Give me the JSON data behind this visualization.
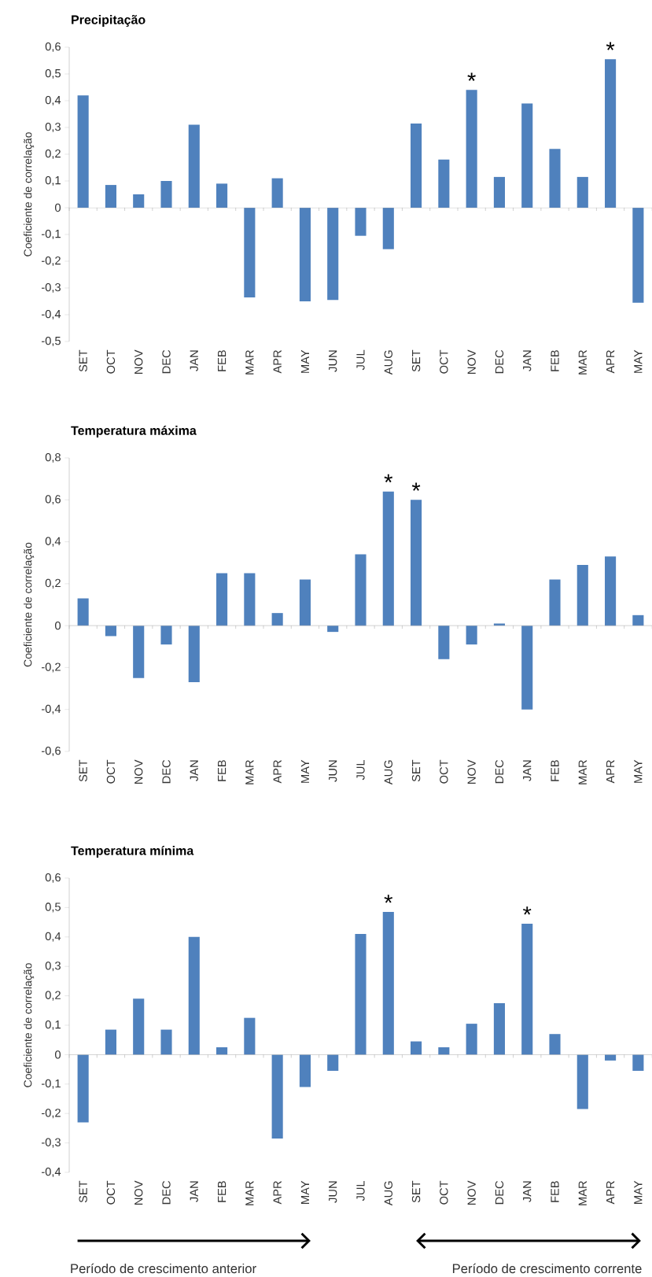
{
  "chart_data": [
    {
      "type": "bar",
      "title": "Precipitação",
      "ylabel": "Coeficiente de correlação",
      "color": "#4f81bd",
      "categories": [
        "SET",
        "OCT",
        "NOV",
        "DEC",
        "JAN",
        "FEB",
        "MAR",
        "APR",
        "MAY",
        "JUN",
        "JUL",
        "AUG",
        "SET",
        "OCT",
        "NOV",
        "DEC",
        "JAN",
        "FEB",
        "MAR",
        "APR",
        "MAY"
      ],
      "values": [
        0.42,
        0.085,
        0.05,
        0.1,
        0.31,
        0.09,
        -0.335,
        0.11,
        -0.35,
        -0.345,
        -0.105,
        -0.155,
        0.315,
        0.18,
        0.44,
        0.115,
        0.39,
        0.22,
        0.115,
        0.555,
        -0.355
      ],
      "ylim": [
        -0.5,
        0.6
      ],
      "yticks": [
        {
          "value": -0.5,
          "label": "-0,5"
        },
        {
          "value": -0.4,
          "label": "-0,4"
        },
        {
          "value": -0.3,
          "label": "-0,3"
        },
        {
          "value": -0.2,
          "label": "-0,2"
        },
        {
          "value": -0.1,
          "label": "-0,1"
        },
        0,
        {
          "value": 0.1,
          "label": "0,1"
        },
        {
          "value": 0.2,
          "label": "0,2"
        },
        {
          "value": 0.3,
          "label": "0,3"
        },
        {
          "value": 0.4,
          "label": "0,4"
        },
        {
          "value": 0.5,
          "label": "0,5"
        },
        {
          "value": 0.6,
          "label": "0,6"
        }
      ],
      "value_labels": [
        null,
        null,
        null,
        null,
        null,
        null,
        null,
        null,
        null,
        null,
        null,
        null,
        null,
        null,
        "*",
        null,
        null,
        null,
        null,
        "*",
        null
      ]
    },
    {
      "type": "bar",
      "title": "Temperatura máxima",
      "ylabel": "Coeficiente de correlação",
      "color": "#4f81bd",
      "categories": [
        "SET",
        "OCT",
        "NOV",
        "DEC",
        "JAN",
        "FEB",
        "MAR",
        "APR",
        "MAY",
        "JUN",
        "JUL",
        "AUG",
        "SET",
        "OCT",
        "NOV",
        "DEC",
        "JAN",
        "FEB",
        "MAR",
        "APR",
        "MAY"
      ],
      "values": [
        0.13,
        -0.05,
        -0.25,
        -0.09,
        -0.27,
        0.25,
        0.25,
        0.06,
        0.22,
        -0.03,
        0.34,
        0.64,
        0.6,
        -0.16,
        -0.09,
        0.01,
        -0.4,
        0.22,
        0.29,
        0.33,
        0.05
      ],
      "ylim": [
        -0.6,
        0.8
      ],
      "yticks": [
        {
          "value": -0.6,
          "label": "-0,6"
        },
        {
          "value": -0.4,
          "label": "-0,4"
        },
        {
          "value": -0.2,
          "label": "-0,2"
        },
        0,
        {
          "value": 0.2,
          "label": "0,2"
        },
        {
          "value": 0.4,
          "label": "0,4"
        },
        {
          "value": 0.6,
          "label": "0,6"
        },
        {
          "value": 0.8,
          "label": "0,8"
        }
      ],
      "value_labels": [
        null,
        null,
        null,
        null,
        null,
        null,
        null,
        null,
        null,
        null,
        null,
        "*",
        "*",
        null,
        null,
        null,
        null,
        null,
        null,
        null,
        null
      ]
    },
    {
      "type": "bar",
      "title": "Temperatura mínima",
      "ylabel": "Coeficiente de correlação",
      "color": "#4f81bd",
      "categories": [
        "SET",
        "OCT",
        "NOV",
        "DEC",
        "JAN",
        "FEB",
        "MAR",
        "APR",
        "MAY",
        "JUN",
        "JUL",
        "AUG",
        "SET",
        "OCT",
        "NOV",
        "DEC",
        "JAN",
        "FEB",
        "MAR",
        "APR",
        "MAY"
      ],
      "values": [
        -0.23,
        0.085,
        0.19,
        0.085,
        0.4,
        0.025,
        0.125,
        -0.285,
        -0.11,
        -0.055,
        0.41,
        0.485,
        0.045,
        0.025,
        0.105,
        0.175,
        0.445,
        0.07,
        -0.185,
        -0.02,
        -0.055
      ],
      "ylim": [
        -0.4,
        0.6
      ],
      "yticks": [
        {
          "value": -0.4,
          "label": "-0,4"
        },
        {
          "value": -0.3,
          "label": "-0,3"
        },
        {
          "value": -0.2,
          "label": "-0,2"
        },
        {
          "value": -0.1,
          "label": "-0,1"
        },
        0,
        {
          "value": 0.1,
          "label": "0,1"
        },
        {
          "value": 0.2,
          "label": "0,2"
        },
        {
          "value": 0.3,
          "label": "0,3"
        },
        {
          "value": 0.4,
          "label": "0,4"
        },
        {
          "value": 0.5,
          "label": "0,5"
        },
        {
          "value": 0.6,
          "label": "0,6"
        }
      ],
      "value_labels": [
        null,
        null,
        null,
        null,
        null,
        null,
        null,
        null,
        null,
        null,
        null,
        "*",
        null,
        null,
        null,
        null,
        "*",
        null,
        null,
        null,
        null
      ],
      "annotations": [
        "Período de crescimento anterior",
        "Período de crescimento corrente"
      ]
    }
  ]
}
